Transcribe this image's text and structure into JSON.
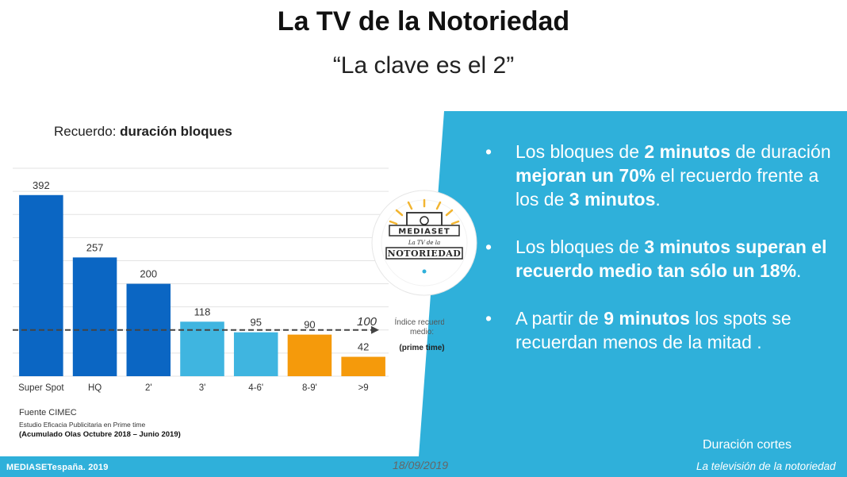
{
  "header": {
    "title": "La TV de la Notoriedad",
    "subtitle": "“La clave es el 2”"
  },
  "chart_data": {
    "type": "bar",
    "title_plain": "Recuerdo: ",
    "title_bold": "duración bloques",
    "categories": [
      "Super Spot",
      "HQ",
      "2'",
      "3'",
      "4-6'",
      "8-9'",
      ">9"
    ],
    "values": [
      392,
      257,
      200,
      118,
      95,
      90,
      42
    ],
    "bar_colors": [
      "#0b66c3",
      "#0b66c3",
      "#0b66c3",
      "#3fb5e0",
      "#3fb5e0",
      "#f59a0b",
      "#f59a0b"
    ],
    "ylim": [
      0,
      450
    ],
    "grid": true,
    "reference_line": {
      "value": 100,
      "value_label": "100",
      "label_line1": "Índice recuerdo",
      "label_line2": "medio:",
      "label_line3": "(prime time)"
    }
  },
  "source": {
    "line1": "Fuente CIMEC",
    "line2": "Estudio Eficacia Publicitaria en Prime time",
    "line3": "(Acumulado Olas Octubre 2018 – Junio 2019)"
  },
  "bullets": [
    {
      "bullet": "•",
      "parts": [
        {
          "text": "Los bloques de ",
          "bold": false
        },
        {
          "text": "2 minutos",
          "bold": true
        },
        {
          "text": " de duración ",
          "bold": false
        },
        {
          "text": "mejoran un 70%",
          "bold": true
        },
        {
          "text": " el recuerdo frente a los de ",
          "bold": false
        },
        {
          "text": "3 minutos",
          "bold": true
        },
        {
          "text": ".",
          "bold": false
        }
      ]
    },
    {
      "bullet": "•",
      "parts": [
        {
          "text": "Los bloques de ",
          "bold": false
        },
        {
          "text": "3 minutos superan el recuerdo medio tan sólo un 18%",
          "bold": true
        },
        {
          "text": ".",
          "bold": false
        }
      ]
    },
    {
      "bullet": "•",
      "parts": [
        {
          "text": "A partir de ",
          "bold": false
        },
        {
          "text": "9 minutos",
          "bold": true
        },
        {
          "text": " los spots se recuerdan menos de la mitad .",
          "bold": false
        }
      ]
    }
  ],
  "seal": {
    "top_text": "MEDIASET",
    "middle_text": "La TV de la",
    "bottom_text": "NOTORIEDAD"
  },
  "footer": {
    "logo": "MEDIASETespaña. 2019",
    "date": "18/09/2019",
    "section": "Duración cortes",
    "tagline": "La televisión de la notoriedad"
  },
  "colors": {
    "panel_blue": "#2fb0da",
    "footer_blue": "#2fb0da"
  }
}
